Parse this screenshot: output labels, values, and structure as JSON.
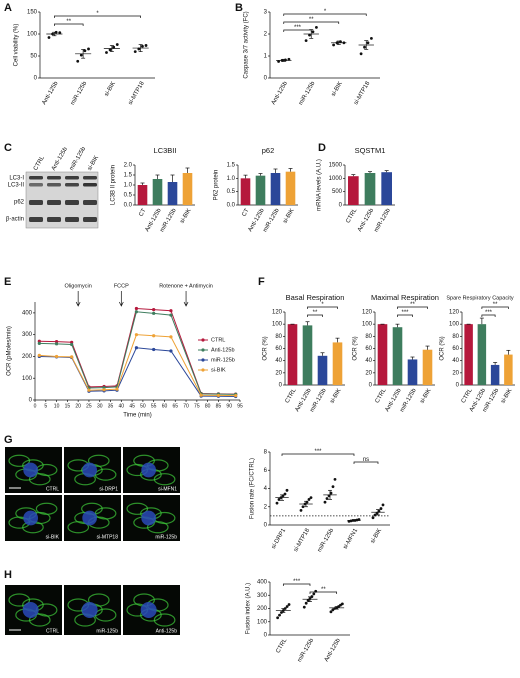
{
  "chart_data": [
    {
      "letter": "A",
      "type": "dot",
      "ylabel": "Cell viability (%)",
      "categories": [
        "Anti-125b",
        "miR-125b",
        "si-BIK",
        "si-MTP18"
      ],
      "values": [
        100,
        55,
        67,
        68
      ],
      "errors": [
        4,
        10,
        7,
        8
      ],
      "points": [
        [
          92,
          100,
          104,
          103
        ],
        [
          38,
          52,
          62,
          66
        ],
        [
          58,
          64,
          70,
          76
        ],
        [
          60,
          66,
          72,
          74
        ]
      ],
      "ylim": [
        0,
        150
      ],
      "yticks": [
        0,
        50,
        100,
        150
      ],
      "significance": [
        {
          "label": "*",
          "pair": [
            "Anti-125b",
            "si-MTP18"
          ]
        },
        {
          "label": "**",
          "pair": [
            "Anti-125b",
            "miR-125b"
          ]
        }
      ]
    },
    {
      "letter": "B",
      "type": "dot",
      "ylabel": "Caspase 3/7 activity (FC)",
      "categories": [
        "Anti-125b",
        "miR-125b",
        "si-BIK",
        "si-MTP18"
      ],
      "values": [
        0.8,
        2.0,
        1.6,
        1.5
      ],
      "errors": [
        0.05,
        0.2,
        0.08,
        0.2
      ],
      "points": [
        [
          0.75,
          0.8,
          0.82,
          0.85
        ],
        [
          1.7,
          1.95,
          2.1,
          2.3
        ],
        [
          1.5,
          1.6,
          1.65,
          1.6
        ],
        [
          1.1,
          1.4,
          1.6,
          1.8
        ]
      ],
      "ylim": [
        0,
        3
      ],
      "yticks": [
        0,
        1,
        2,
        3
      ],
      "significance": [
        {
          "label": "*",
          "pair": [
            "Anti-125b",
            "si-MTP18"
          ]
        },
        {
          "label": "**",
          "pair": [
            "Anti-125b",
            "si-BIK"
          ]
        },
        {
          "label": "***",
          "pair": [
            "Anti-125b",
            "miR-125b"
          ]
        }
      ]
    },
    {
      "type": "bar",
      "title": "LC3BII",
      "ylabel": "LC3B II protein",
      "categories": [
        "CT",
        "Anti-125b",
        "miR-125b",
        "si-BIK"
      ],
      "values": [
        1.0,
        1.3,
        1.15,
        1.6
      ],
      "errors": [
        0.1,
        0.2,
        0.35,
        0.25
      ],
      "colors": [
        "#b5183c",
        "#3e7d5e",
        "#2b4799",
        "#eea236"
      ],
      "ylim": [
        0,
        2
      ],
      "yticks": [
        {
          "value": 0,
          "label": "0.0"
        },
        0.5,
        {
          "value": 1,
          "label": "1.0"
        },
        1.5,
        {
          "value": 2,
          "label": "2.0"
        }
      ]
    },
    {
      "type": "bar",
      "title": "p62",
      "ylabel": "P62 protein",
      "categories": [
        "CT",
        "Anti-125b",
        "miR-125b",
        "si-BIK"
      ],
      "values": [
        1.0,
        1.1,
        1.2,
        1.25
      ],
      "errors": [
        0.12,
        0.08,
        0.15,
        0.12
      ],
      "colors": [
        "#b5183c",
        "#3e7d5e",
        "#2b4799",
        "#eea236"
      ],
      "ylim": [
        0,
        1.5
      ],
      "yticks": [
        {
          "value": 0,
          "label": "0.0"
        },
        0.5,
        {
          "value": 1,
          "label": "1.0"
        },
        1.5
      ]
    },
    {
      "letter": "D",
      "type": "bar",
      "title": "SQSTM1",
      "ylabel": "mRNA levels (A.U.)",
      "categories": [
        "CTRL",
        "Anti-125b",
        "miR-125b"
      ],
      "values": [
        1080,
        1200,
        1230
      ],
      "errors": [
        60,
        50,
        60
      ],
      "colors": [
        "#b5183c",
        "#3e7d5e",
        "#2b4799"
      ],
      "ylim": [
        0,
        1500
      ],
      "yticks": [
        0,
        500,
        1000,
        1500
      ]
    },
    {
      "letter": "E",
      "type": "line",
      "ylabel": "OCR (pMoles/min)",
      "xlabel": "Time (min)",
      "x": [
        2,
        10,
        17,
        25,
        32,
        38,
        47,
        55,
        63,
        77,
        85,
        93
      ],
      "series": [
        {
          "name": "CTRL",
          "color": "#b5183c",
          "values": [
            270,
            268,
            265,
            60,
            62,
            65,
            420,
            415,
            410,
            30,
            28,
            27
          ]
        },
        {
          "name": "Anti-125b",
          "color": "#3e7d5e",
          "values": [
            260,
            258,
            255,
            55,
            57,
            60,
            405,
            398,
            390,
            28,
            27,
            26
          ]
        },
        {
          "name": "miR-125b",
          "color": "#2b4799",
          "values": [
            200,
            198,
            195,
            40,
            42,
            45,
            240,
            232,
            225,
            18,
            17,
            16
          ]
        },
        {
          "name": "si-BIK",
          "color": "#eea236",
          "values": [
            205,
            200,
            198,
            45,
            47,
            50,
            300,
            295,
            290,
            22,
            21,
            20
          ]
        }
      ],
      "xlim": [
        0,
        95
      ],
      "xticks": [
        0,
        5,
        10,
        15,
        20,
        25,
        30,
        35,
        40,
        45,
        50,
        55,
        60,
        65,
        70,
        75,
        80,
        85,
        90,
        95
      ],
      "ylim": [
        0,
        450
      ],
      "yticks": [
        0,
        100,
        200,
        300,
        400
      ],
      "annotations": [
        {
          "label": "Oligomycin",
          "x": 20
        },
        {
          "label": "FCCP",
          "x": 40
        },
        {
          "label": "Rotenone + Antimycin",
          "x": 70
        }
      ]
    },
    {
      "letter": "F",
      "type": "bar",
      "title": "Basal Respiration",
      "ylabel": "OCR (%)",
      "categories": [
        "CTRL",
        "Anti-125b",
        "miR-125b",
        "si-BIK"
      ],
      "values": [
        100,
        98,
        48,
        70
      ],
      "errors": [
        0,
        6,
        5,
        7
      ],
      "colors": [
        "#b5183c",
        "#3e7d5e",
        "#2b4799",
        "#eea236"
      ],
      "ylim": [
        0,
        120
      ],
      "yticks": [
        0,
        20,
        40,
        60,
        80,
        100,
        120
      ],
      "significance": [
        {
          "label": "*",
          "pair": [
            "Anti-125b",
            "si-BIK"
          ]
        },
        {
          "label": "**",
          "pair": [
            "Anti-125b",
            "miR-125b"
          ]
        }
      ]
    },
    {
      "type": "bar",
      "title": "Maximal Respiration",
      "ylabel": "OCR (%)",
      "categories": [
        "CTRL",
        "Anti-125b",
        "miR-125b",
        "si-BIK"
      ],
      "values": [
        100,
        95,
        42,
        58
      ],
      "errors": [
        0,
        5,
        4,
        6
      ],
      "colors": [
        "#b5183c",
        "#3e7d5e",
        "#2b4799",
        "#eea236"
      ],
      "ylim": [
        0,
        120
      ],
      "yticks": [
        0,
        20,
        40,
        60,
        80,
        100,
        120
      ],
      "significance": [
        {
          "label": "**",
          "pair": [
            "Anti-125b",
            "si-BIK"
          ]
        },
        {
          "label": "***",
          "pair": [
            "Anti-125b",
            "miR-125b"
          ]
        }
      ]
    },
    {
      "type": "bar",
      "title": "Spare Respiratory Capacity",
      "ylabel": "OCR (%)",
      "categories": [
        "CTRL",
        "Anti-125b",
        "miR-125b",
        "si-BIK"
      ],
      "values": [
        100,
        100,
        33,
        50
      ],
      "errors": [
        0,
        10,
        4,
        7
      ],
      "colors": [
        "#b5183c",
        "#3e7d5e",
        "#2b4799",
        "#eea236"
      ],
      "ylim": [
        0,
        120
      ],
      "yticks": [
        0,
        20,
        40,
        60,
        80,
        100,
        120
      ],
      "significance": [
        {
          "label": "**",
          "pair": [
            "Anti-125b",
            "si-BIK"
          ]
        },
        {
          "label": "***",
          "pair": [
            "Anti-125b",
            "miR-125b"
          ]
        }
      ]
    },
    {
      "type": "dot",
      "ylabel": "Fusion rate (FC/CTRL)",
      "categories": [
        "si-DRP1",
        "si-MTP18",
        "miR-125b",
        "si-MFN1",
        "si-BIK"
      ],
      "values": [
        3.0,
        2.3,
        3.3,
        0.5,
        1.4
      ],
      "errors": [
        0.3,
        0.3,
        0.5,
        0.05,
        0.3
      ],
      "points": [
        [
          2.4,
          2.8,
          3.0,
          3.2,
          3.4,
          3.8
        ],
        [
          1.6,
          2.0,
          2.3,
          2.5,
          2.8,
          3.0
        ],
        [
          2.5,
          2.9,
          3.2,
          3.5,
          4.2,
          5.0
        ],
        [
          0.4,
          0.45,
          0.5,
          0.5,
          0.55,
          0.6
        ],
        [
          0.8,
          1.1,
          1.3,
          1.5,
          1.8,
          2.2
        ]
      ],
      "ylim": [
        0,
        8
      ],
      "yticks": [
        0,
        2,
        4,
        6,
        8
      ],
      "refline": 1,
      "significance": [
        {
          "label": "***",
          "pair": [
            "si-DRP1",
            "si-MFN1"
          ]
        },
        {
          "label": "ns",
          "pair": [
            "si-MFN1",
            "si-BIK"
          ]
        }
      ]
    },
    {
      "type": "dot",
      "ylabel": "Fusion index (A.U.)",
      "categories": [
        "CTRL",
        "miR-125b",
        "Anti-125b"
      ],
      "values": [
        185,
        270,
        205
      ],
      "errors": [
        15,
        18,
        10
      ],
      "points": [
        [
          130,
          150,
          170,
          185,
          200,
          215,
          230
        ],
        [
          210,
          240,
          260,
          275,
          290,
          310,
          330
        ],
        [
          175,
          190,
          200,
          205,
          215,
          225,
          235
        ]
      ],
      "ylim": [
        0,
        400
      ],
      "yticks": [
        0,
        100,
        200,
        300,
        400
      ],
      "significance": [
        {
          "label": "***",
          "pair": [
            "CTRL",
            "miR-125b"
          ]
        },
        {
          "label": "**",
          "pair": [
            "miR-125b",
            "Anti-125b"
          ]
        }
      ]
    }
  ],
  "blot": {
    "letter": "C",
    "lanes": [
      "CTRL",
      "Anti-125b",
      "miR-125b",
      "si-BIK"
    ],
    "rows": [
      "LC3-I",
      "LC3-II",
      "p62",
      "β-actin"
    ]
  },
  "images": [
    {
      "letter": "G",
      "labels": [
        "CTRL",
        "si-DRP1",
        "si-MFN1",
        "si-BIK",
        "si-MTP18",
        "miR-125b"
      ]
    },
    {
      "letter": "H",
      "labels": [
        "CTRL",
        "miR-125b",
        "Anti-125b"
      ]
    }
  ]
}
